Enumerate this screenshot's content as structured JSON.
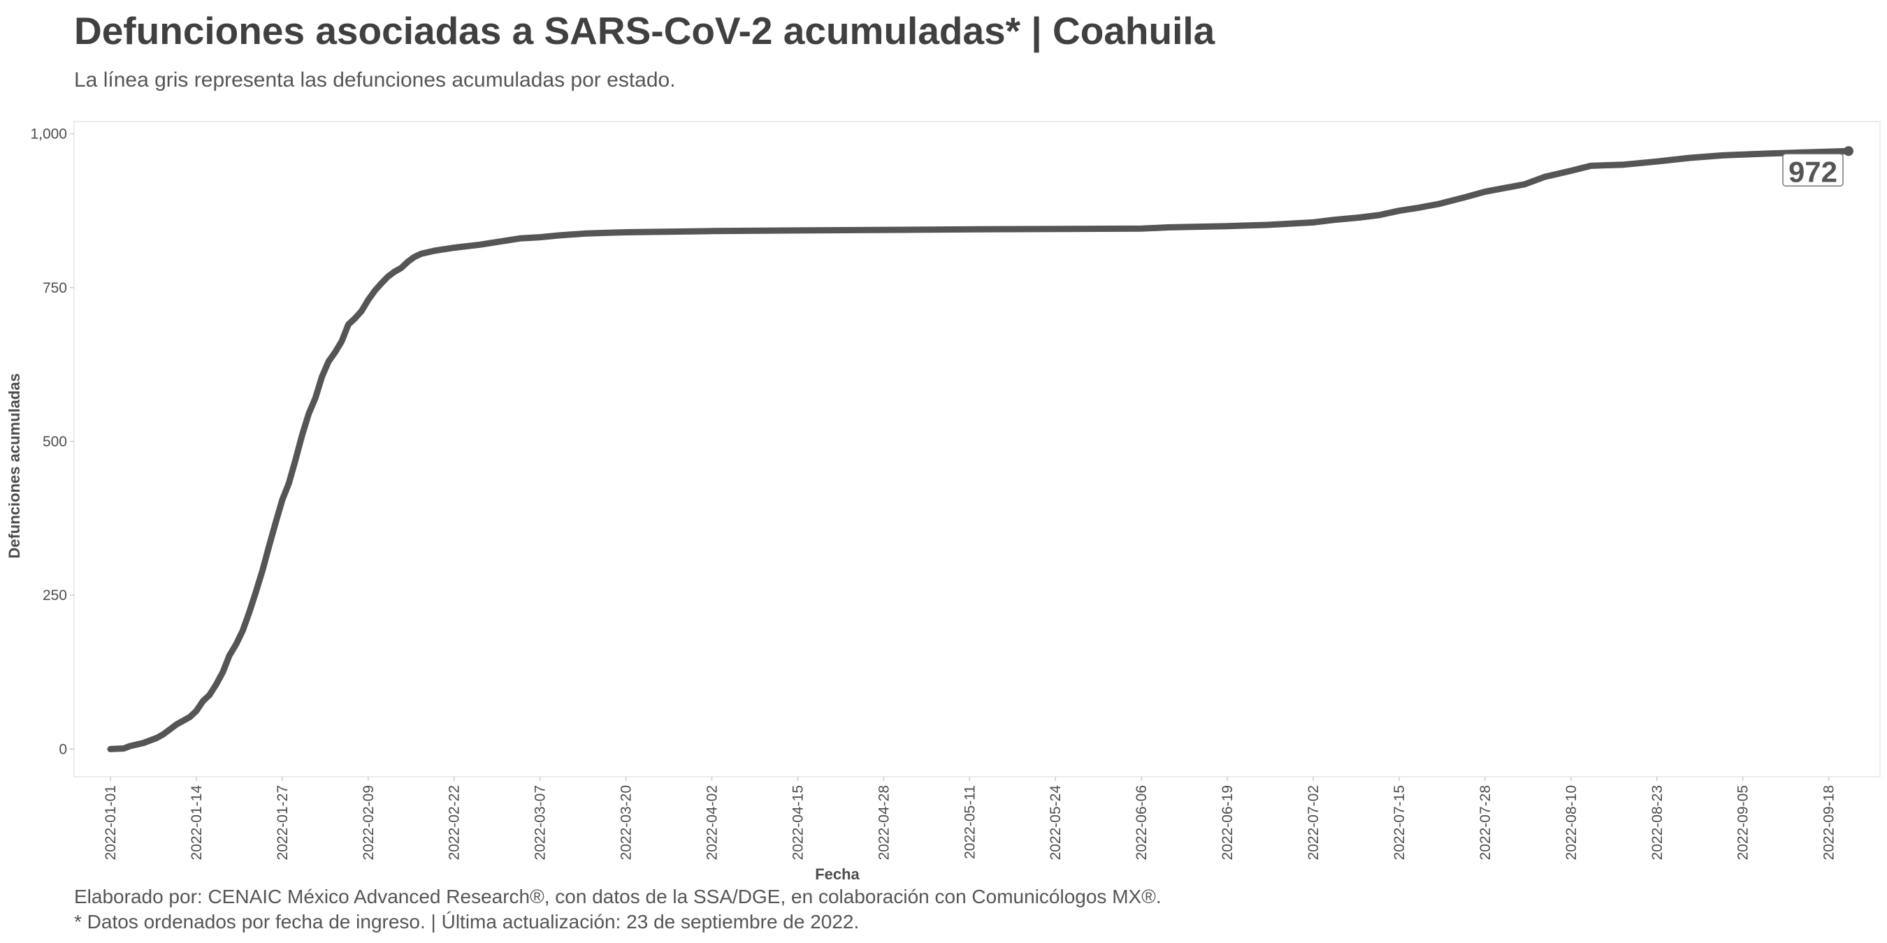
{
  "header": {
    "title": "Defunciones asociadas a SARS-CoV-2 acumuladas* | Coahuila",
    "subtitle": "La línea gris representa las defunciones acumuladas por estado."
  },
  "footer": {
    "line1": "Elaborado por: CENAIC México Advanced Research®, con datos de la SSA/DGE, en colaboración con Comunicólogos MX®.",
    "line2": "* Datos ordenados por fecha de ingreso. | Última actualización: 23 de septiembre de 2022."
  },
  "colors": {
    "line": "#555555",
    "panel_border": "#e6e6e6",
    "text": "#4d4d4d"
  },
  "chart_data": {
    "type": "line",
    "xlabel": "Fecha",
    "ylabel": "Defunciones acumuladas",
    "x_start": "2022-01-01",
    "x_end": "2022-09-21",
    "ylim": [
      -45,
      1020
    ],
    "yticks": [
      0,
      250,
      500,
      750,
      1000
    ],
    "ytick_labels": [
      "0",
      "250",
      "500",
      "750",
      "1,000"
    ],
    "xticks": [
      "2022-01-01",
      "2022-01-14",
      "2022-01-27",
      "2022-02-09",
      "2022-02-22",
      "2022-03-07",
      "2022-03-20",
      "2022-04-02",
      "2022-04-15",
      "2022-04-28",
      "2022-05-11",
      "2022-05-24",
      "2022-06-06",
      "2022-06-19",
      "2022-07-02",
      "2022-07-15",
      "2022-07-28",
      "2022-08-10",
      "2022-08-23",
      "2022-09-05",
      "2022-09-18"
    ],
    "grid": false,
    "legend": "none",
    "end_label": "972",
    "series": [
      {
        "points": [
          [
            "2022-01-01",
            0
          ],
          [
            "2022-01-03",
            1
          ],
          [
            "2022-01-04",
            5
          ],
          [
            "2022-01-06",
            10
          ],
          [
            "2022-01-08",
            18
          ],
          [
            "2022-01-09",
            24
          ],
          [
            "2022-01-11",
            40
          ],
          [
            "2022-01-13",
            52
          ],
          [
            "2022-01-14",
            62
          ],
          [
            "2022-01-15",
            78
          ],
          [
            "2022-01-16",
            88
          ],
          [
            "2022-01-17",
            105
          ],
          [
            "2022-01-18",
            125
          ],
          [
            "2022-01-19",
            152
          ],
          [
            "2022-01-20",
            170
          ],
          [
            "2022-01-21",
            192
          ],
          [
            "2022-01-22",
            222
          ],
          [
            "2022-01-23",
            255
          ],
          [
            "2022-01-24",
            290
          ],
          [
            "2022-01-25",
            330
          ],
          [
            "2022-01-26",
            368
          ],
          [
            "2022-01-27",
            405
          ],
          [
            "2022-01-28",
            432
          ],
          [
            "2022-01-29",
            470
          ],
          [
            "2022-01-30",
            510
          ],
          [
            "2022-01-31",
            545
          ],
          [
            "2022-02-01",
            570
          ],
          [
            "2022-02-02",
            605
          ],
          [
            "2022-02-03",
            630
          ],
          [
            "2022-02-04",
            645
          ],
          [
            "2022-02-05",
            663
          ],
          [
            "2022-02-06",
            690
          ],
          [
            "2022-02-07",
            700
          ],
          [
            "2022-02-08",
            712
          ],
          [
            "2022-02-09",
            730
          ],
          [
            "2022-02-10",
            745
          ],
          [
            "2022-02-11",
            757
          ],
          [
            "2022-02-12",
            768
          ],
          [
            "2022-02-13",
            776
          ],
          [
            "2022-02-14",
            782
          ],
          [
            "2022-02-15",
            792
          ],
          [
            "2022-02-16",
            800
          ],
          [
            "2022-02-17",
            805
          ],
          [
            "2022-02-19",
            810
          ],
          [
            "2022-02-22",
            815
          ],
          [
            "2022-02-26",
            820
          ],
          [
            "2022-03-01",
            825
          ],
          [
            "2022-03-04",
            830
          ],
          [
            "2022-03-07",
            832
          ],
          [
            "2022-03-10",
            835
          ],
          [
            "2022-03-14",
            838
          ],
          [
            "2022-03-20",
            840
          ],
          [
            "2022-03-26",
            841
          ],
          [
            "2022-04-02",
            842
          ],
          [
            "2022-04-15",
            843
          ],
          [
            "2022-05-01",
            844
          ],
          [
            "2022-05-15",
            845
          ],
          [
            "2022-06-06",
            846
          ],
          [
            "2022-06-10",
            848
          ],
          [
            "2022-06-19",
            850
          ],
          [
            "2022-06-25",
            852
          ],
          [
            "2022-07-02",
            856
          ],
          [
            "2022-07-05",
            860
          ],
          [
            "2022-07-09",
            864
          ],
          [
            "2022-07-12",
            868
          ],
          [
            "2022-07-15",
            875
          ],
          [
            "2022-07-18",
            880
          ],
          [
            "2022-07-21",
            886
          ],
          [
            "2022-07-25",
            897
          ],
          [
            "2022-07-28",
            906
          ],
          [
            "2022-07-31",
            912
          ],
          [
            "2022-08-03",
            918
          ],
          [
            "2022-08-06",
            930
          ],
          [
            "2022-08-10",
            940
          ],
          [
            "2022-08-13",
            948
          ],
          [
            "2022-08-18",
            950
          ],
          [
            "2022-08-23",
            955
          ],
          [
            "2022-08-28",
            961
          ],
          [
            "2022-09-02",
            965
          ],
          [
            "2022-09-09",
            968
          ],
          [
            "2022-09-15",
            970
          ],
          [
            "2022-09-21",
            972
          ]
        ]
      }
    ]
  }
}
